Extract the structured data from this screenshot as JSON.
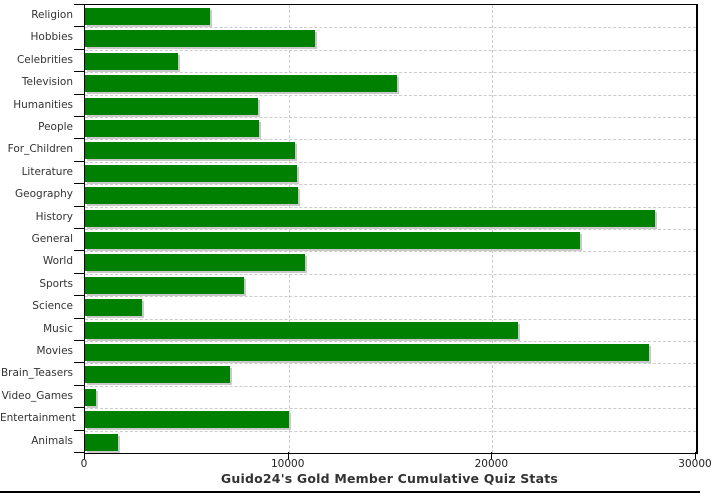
{
  "chart_data": {
    "type": "bar",
    "orientation": "horizontal",
    "title": "Guido24's Gold Member Cumulative Quiz Stats",
    "categories": [
      "Religion",
      "Hobbies",
      "Celebrities",
      "Television",
      "Humanities",
      "People",
      "For_Children",
      "Literature",
      "Geography",
      "History",
      "General",
      "World",
      "Sports",
      "Science",
      "Music",
      "Movies",
      "Brain_Teasers",
      "Video_Games",
      "Entertainment",
      "Animals"
    ],
    "values": [
      6150,
      11300,
      4550,
      15300,
      8500,
      8550,
      10300,
      10400,
      10450,
      28000,
      24300,
      10800,
      7800,
      2800,
      21250,
      27700,
      7100,
      550,
      10000,
      1600
    ],
    "xlabel": "",
    "ylabel": "",
    "xlim": [
      0,
      30000
    ],
    "xticks": [
      0,
      10000,
      20000,
      30000
    ],
    "xtick_labels": [
      "0",
      "10000",
      "20000",
      "30000"
    ],
    "grid": "dashed",
    "legend": "none",
    "bar_color": "#008000",
    "bar_shadow_color": "#c9c9c9",
    "gridline_color": "#cccccc",
    "axis_color": "#000000",
    "text_color": "#333333"
  }
}
